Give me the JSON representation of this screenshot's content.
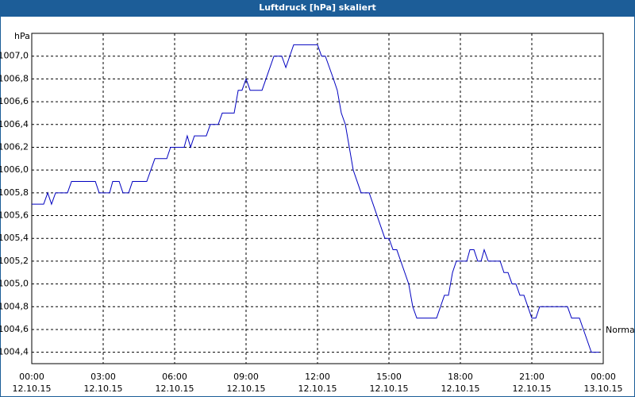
{
  "chart_data": {
    "type": "line",
    "title": "Luftdruck [hPa] skaliert",
    "y_unit": "hPa",
    "annotation": "Normal",
    "grid": true,
    "xlim": [
      0,
      24
    ],
    "ylim": [
      1004.3,
      1007.2
    ],
    "xticks": [
      {
        "value": 0,
        "label": "00:00",
        "date": "12.10.15"
      },
      {
        "value": 3,
        "label": "03:00",
        "date": "12.10.15"
      },
      {
        "value": 6,
        "label": "06:00",
        "date": "12.10.15"
      },
      {
        "value": 9,
        "label": "09:00",
        "date": "12.10.15"
      },
      {
        "value": 12,
        "label": "12:00",
        "date": "12.10.15"
      },
      {
        "value": 15,
        "label": "15:00",
        "date": "12.10.15"
      },
      {
        "value": 18,
        "label": "18:00",
        "date": "12.10.15"
      },
      {
        "value": 21,
        "label": "21:00",
        "date": "12.10.15"
      },
      {
        "value": 24,
        "label": "00:00",
        "date": "13.10.15"
      }
    ],
    "yticks": [
      {
        "value": 1004.4,
        "label": "1004,4"
      },
      {
        "value": 1004.6,
        "label": "1004,6"
      },
      {
        "value": 1004.8,
        "label": "1004,8"
      },
      {
        "value": 1005.0,
        "label": "1005,0"
      },
      {
        "value": 1005.2,
        "label": "1005,2"
      },
      {
        "value": 1005.4,
        "label": "1005,4"
      },
      {
        "value": 1005.6,
        "label": "1005,6"
      },
      {
        "value": 1005.8,
        "label": "1005,8"
      },
      {
        "value": 1006.0,
        "label": "1006,0"
      },
      {
        "value": 1006.2,
        "label": "1006,2"
      },
      {
        "value": 1006.4,
        "label": "1006,4"
      },
      {
        "value": 1006.6,
        "label": "1006,6"
      },
      {
        "value": 1006.8,
        "label": "1006,8"
      },
      {
        "value": 1007.0,
        "label": "1007,0"
      }
    ],
    "color": "#0000c0",
    "x": [
      0,
      0.5,
      0.67,
      0.83,
      1,
      1.5,
      1.67,
      2.67,
      2.83,
      3.27,
      3.4,
      3.67,
      3.83,
      4.07,
      4.23,
      4.83,
      5.17,
      5.67,
      5.83,
      6.4,
      6.53,
      6.67,
      6.83,
      7.33,
      7.5,
      7.83,
      8,
      8.5,
      8.67,
      8.83,
      9,
      9.17,
      9.67,
      10.17,
      10.5,
      10.67,
      11,
      12,
      12.17,
      12.33,
      12.67,
      12.83,
      13,
      13.17,
      13.5,
      13.83,
      14.17,
      14.83,
      15,
      15.17,
      15.33,
      15.83,
      16,
      16.17,
      17,
      17.33,
      17.5,
      17.67,
      17.83,
      18.27,
      18.4,
      18.57,
      18.73,
      18.87,
      19,
      19.17,
      19.67,
      19.83,
      20,
      20.17,
      20.33,
      20.5,
      20.67,
      21,
      21.17,
      21.33,
      22.5,
      22.67,
      23,
      23.5,
      23.83
    ],
    "values": [
      1005.7,
      1005.7,
      1005.8,
      1005.7,
      1005.8,
      1005.8,
      1005.9,
      1005.9,
      1005.8,
      1005.8,
      1005.9,
      1005.9,
      1005.8,
      1005.8,
      1005.9,
      1005.9,
      1006.1,
      1006.1,
      1006.2,
      1006.2,
      1006.3,
      1006.2,
      1006.3,
      1006.3,
      1006.4,
      1006.4,
      1006.5,
      1006.5,
      1006.7,
      1006.7,
      1006.8,
      1006.7,
      1006.7,
      1007.0,
      1007.0,
      1006.9,
      1007.1,
      1007.1,
      1007.0,
      1007.0,
      1006.8,
      1006.7,
      1006.5,
      1006.4,
      1006.0,
      1005.8,
      1005.8,
      1005.4,
      1005.4,
      1005.3,
      1005.3,
      1005.0,
      1004.8,
      1004.7,
      1004.7,
      1004.9,
      1004.9,
      1005.1,
      1005.2,
      1005.2,
      1005.3,
      1005.3,
      1005.2,
      1005.2,
      1005.3,
      1005.2,
      1005.2,
      1005.1,
      1005.1,
      1005.0,
      1005.0,
      1004.9,
      1004.9,
      1004.7,
      1004.7,
      1004.8,
      1004.8,
      1004.7,
      1004.7,
      1004.4,
      1004.4
    ]
  }
}
